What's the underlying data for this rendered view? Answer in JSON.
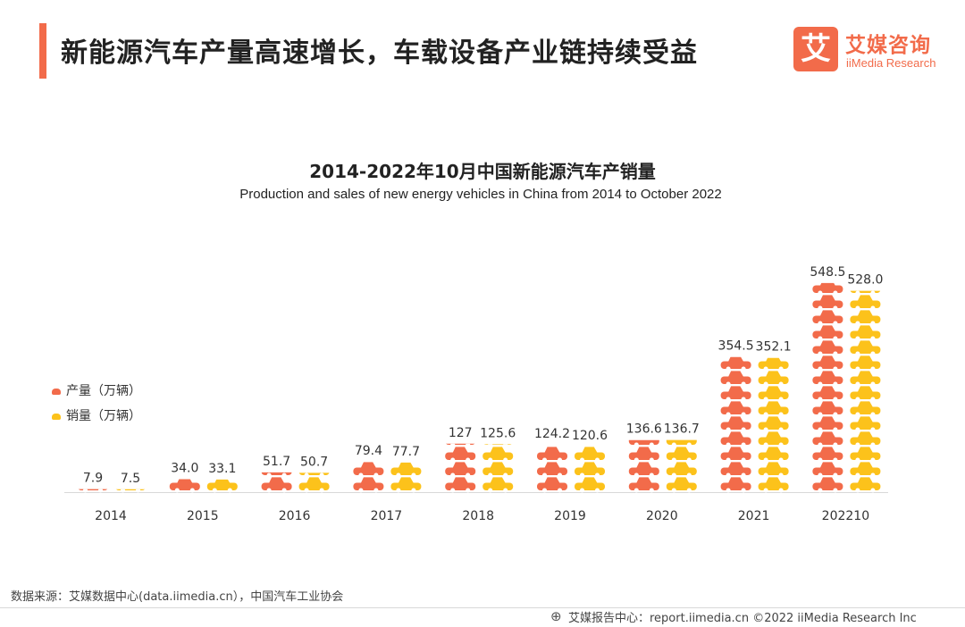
{
  "header": {
    "title": "新能源汽车产量高速增长，车载设备产业链持续受益",
    "logo_mark": "艾",
    "logo_cn": "艾媒咨询",
    "logo_en": "iiMedia Research"
  },
  "colors": {
    "accent": "#f26b4a",
    "production": "#f26b4a",
    "sales": "#fcc21b",
    "axis": "#d9d9d9"
  },
  "chart_data": {
    "type": "bar",
    "title": "2014-2022年10月中国新能源汽车产销量",
    "subtitle": "Production and sales of new energy vehicles in China from 2014 to October 2022",
    "categories": [
      "2014",
      "2015",
      "2016",
      "2017",
      "2018",
      "2019",
      "2020",
      "2021",
      "202210"
    ],
    "series": [
      {
        "name": "产量（万辆）",
        "values": [
          7.9,
          34.0,
          51.7,
          79.4,
          127,
          124.2,
          136.6,
          354.5,
          548.5
        ],
        "labels": [
          "7.9",
          "34.0",
          "51.7",
          "79.4",
          "127",
          "124.2",
          "136.6",
          "354.5",
          "548.5"
        ]
      },
      {
        "name": "销量（万辆）",
        "values": [
          7.5,
          33.1,
          50.7,
          77.7,
          125.6,
          120.6,
          136.7,
          352.1,
          528.0
        ],
        "labels": [
          "7.5",
          "33.1",
          "50.7",
          "77.7",
          "125.6",
          "120.6",
          "136.7",
          "352.1",
          "528.0"
        ]
      }
    ],
    "ylim": [
      0,
      560
    ],
    "grid": false,
    "legend_position": "left",
    "mark_style": "stacked car pictograms"
  },
  "footer": {
    "source": "数据来源：艾媒数据中心(data.iimedia.cn），中国汽车工业协会",
    "report_site": "艾媒报告中心：report.iimedia.cn   ©2022  iiMedia Research  Inc",
    "icon": "globe-icon"
  }
}
